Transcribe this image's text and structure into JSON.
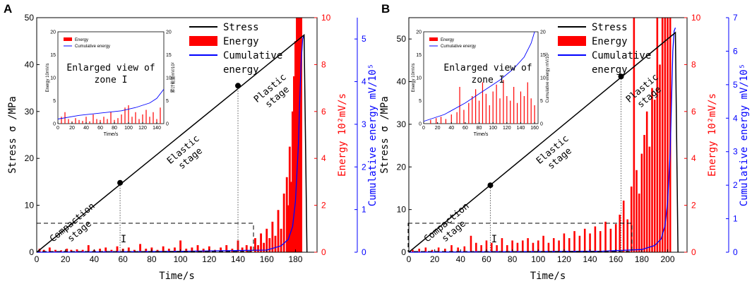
{
  "chart_data": [
    {
      "panel_label": "A",
      "type": "line",
      "xlabel": "Time/s",
      "ylabel": "Stress σ /MPa",
      "y2label": "Energy 10²mV/s",
      "y3label": "Cumulative energy mV/10⁵",
      "xlim": [
        0,
        195
      ],
      "ylim": [
        0,
        50
      ],
      "y2lim": [
        0,
        10
      ],
      "y3lim": [
        0,
        5.5
      ],
      "xticks": [
        0,
        20,
        40,
        60,
        80,
        100,
        120,
        140,
        160,
        180
      ],
      "yticks": [
        0,
        10,
        20,
        30,
        40,
        50
      ],
      "y2ticks": [
        0,
        2,
        4,
        6,
        8,
        10
      ],
      "y3ticks": [
        0,
        1,
        2,
        3,
        4,
        5
      ],
      "stress": {
        "name": "Stress",
        "x": [
          0,
          186,
          188
        ],
        "y": [
          0,
          46.3,
          0
        ]
      },
      "energy_bars": {
        "name": "Energy",
        "x": [
          2,
          5,
          9,
          13,
          17,
          21,
          24,
          28,
          32,
          36,
          40,
          44,
          48,
          52,
          56,
          60,
          64,
          68,
          72,
          76,
          80,
          84,
          88,
          92,
          96,
          100,
          104,
          108,
          112,
          116,
          120,
          124,
          128,
          132,
          136,
          140,
          143,
          146,
          149,
          152,
          154,
          156,
          158,
          160,
          162,
          164,
          166,
          168,
          170,
          172,
          174,
          175,
          176,
          177,
          178,
          179,
          180,
          181,
          182,
          183,
          184
        ],
        "values": [
          0.15,
          0.1,
          0.2,
          0.1,
          0.08,
          0.15,
          0.1,
          0.12,
          0.1,
          0.3,
          0.1,
          0.15,
          0.2,
          0.1,
          0.25,
          0.15,
          0.2,
          0.1,
          0.35,
          0.15,
          0.2,
          0.1,
          0.25,
          0.15,
          0.2,
          0.5,
          0.15,
          0.2,
          0.3,
          0.15,
          0.25,
          0.1,
          0.2,
          0.3,
          0.15,
          0.5,
          0.2,
          0.3,
          0.25,
          0.6,
          0.3,
          0.8,
          0.4,
          1.0,
          0.6,
          1.3,
          0.7,
          1.8,
          1.0,
          2.5,
          3.2,
          2.0,
          4.5,
          3.0,
          6.0,
          7.5,
          9.0,
          10,
          10,
          10,
          10
        ]
      },
      "cumulative": {
        "name": "Cumulative energy",
        "x": [
          0,
          100,
          160,
          170,
          175,
          178,
          180,
          182,
          183,
          184,
          185,
          186
        ],
        "y": [
          0,
          0.02,
          0.05,
          0.15,
          0.3,
          0.6,
          1.2,
          2.5,
          3.6,
          4.5,
          5.0,
          5.1
        ]
      },
      "points": [
        {
          "x": 58,
          "y": 14.8
        },
        {
          "x": 140,
          "y": 35.5
        }
      ],
      "stage_labels": [
        "Compaction stage",
        "Elastic stage",
        "Plastic stage"
      ],
      "zone_label": "I",
      "legend": [
        "Stress",
        "Energy",
        "Cumulative energy"
      ],
      "inset": {
        "title": "Enlarged view of zone I",
        "xlabel": "Time/s",
        "ylabel": "Energy 10mV/s",
        "y2label": "累计能量mV/10²",
        "legend": [
          "Energy",
          "Cumulative energy"
        ],
        "xlim": [
          0,
          150
        ],
        "ylim": [
          0,
          20
        ],
        "y2lim": [
          0,
          20
        ],
        "xticks": [
          0,
          20,
          40,
          60,
          80,
          100,
          120,
          140
        ],
        "yticks": [
          0,
          5,
          10,
          15,
          20
        ],
        "y2ticks": [
          0,
          5,
          10,
          15,
          20
        ],
        "bars_x": [
          5,
          10,
          15,
          20,
          25,
          30,
          35,
          40,
          45,
          50,
          55,
          60,
          65,
          70,
          75,
          80,
          85,
          90,
          95,
          100,
          105,
          110,
          115,
          120,
          125,
          130,
          135,
          140,
          145
        ],
        "bars_y": [
          1.5,
          2.5,
          1.0,
          0.5,
          1.2,
          0.8,
          0.6,
          1.5,
          0.5,
          2.0,
          1.0,
          0.8,
          1.5,
          1.0,
          2.5,
          0.8,
          1.2,
          2.0,
          3.5,
          4.0,
          1.5,
          2.5,
          1.0,
          2.0,
          3.0,
          1.5,
          2.5,
          1.0,
          3.5
        ],
        "cum_x": [
          0,
          30,
          60,
          90,
          110,
          130,
          140,
          150
        ],
        "cum_y": [
          1.0,
          1.8,
          2.3,
          2.8,
          3.5,
          4.5,
          5.5,
          7.5
        ]
      }
    },
    {
      "panel_label": "B",
      "type": "line",
      "xlabel": "Time/s",
      "ylabel": "Stress σ /MPa",
      "y2label": "Energy 10²mV/s",
      "y3label": "Cumulative energy mV/10⁵",
      "xlim": [
        0,
        215
      ],
      "ylim": [
        0,
        55
      ],
      "y2lim": [
        0,
        10
      ],
      "y3lim": [
        0,
        7
      ],
      "xticks": [
        0,
        20,
        40,
        60,
        80,
        100,
        120,
        140,
        160,
        180,
        200
      ],
      "yticks": [
        0,
        10,
        20,
        30,
        40,
        50
      ],
      "y2ticks": [
        0,
        2,
        4,
        6,
        8,
        10
      ],
      "y3ticks": [
        0,
        1,
        2,
        3,
        4,
        5,
        6,
        7
      ],
      "stress": {
        "name": "Stress",
        "x": [
          0,
          206,
          208
        ],
        "y": [
          0,
          51.5,
          0
        ]
      },
      "energy_bars": {
        "name": "Energy",
        "x": [
          3,
          8,
          13,
          18,
          23,
          28,
          33,
          38,
          43,
          48,
          52,
          56,
          60,
          64,
          68,
          72,
          76,
          80,
          84,
          88,
          92,
          96,
          100,
          104,
          108,
          112,
          116,
          120,
          124,
          128,
          132,
          136,
          140,
          144,
          148,
          152,
          156,
          160,
          163,
          166,
          169,
          172,
          174,
          176,
          178,
          180,
          182,
          184,
          186,
          188,
          190,
          192,
          194,
          196,
          198,
          200,
          202
        ],
        "values": [
          0.1,
          0.15,
          0.2,
          0.1,
          0.2,
          0.15,
          0.3,
          0.2,
          0.25,
          0.7,
          0.4,
          0.3,
          0.5,
          0.4,
          0.3,
          0.6,
          0.3,
          0.5,
          0.4,
          0.5,
          0.6,
          0.4,
          0.5,
          0.7,
          0.4,
          0.6,
          0.5,
          0.8,
          0.6,
          0.9,
          0.7,
          1.0,
          0.8,
          1.1,
          0.9,
          1.3,
          1.0,
          1.2,
          1.6,
          2.2,
          1.4,
          2.8,
          10,
          3.5,
          2.5,
          4.2,
          5.0,
          6.0,
          4.5,
          7.0,
          6.5,
          10,
          8.0,
          10,
          10,
          10,
          10
        ]
      },
      "cumulative": {
        "name": "Cumulative energy",
        "x": [
          0,
          150,
          180,
          190,
          195,
          198,
          200,
          202,
          203,
          204,
          205,
          206
        ],
        "y": [
          0,
          0.03,
          0.08,
          0.2,
          0.4,
          0.8,
          1.5,
          3.0,
          4.5,
          6.0,
          6.6,
          6.7
        ]
      },
      "points": [
        {
          "x": 63,
          "y": 15.7
        },
        {
          "x": 164,
          "y": 41.2
        }
      ],
      "stage_labels": [
        "Compaction stage",
        "Elastic stage",
        "Plastic stage"
      ],
      "zone_label": "I",
      "legend": [
        "Stress",
        "Energy",
        "Cumulative energy"
      ],
      "inset": {
        "title": "Enlarged view of zone I",
        "xlabel": "Time/s",
        "ylabel": "Energy 10mV/s",
        "y2label": "Cumulative energy mV/10²",
        "legend": [
          "Energy",
          "Cumulative energy"
        ],
        "xlim": [
          0,
          165
        ],
        "ylim": [
          0,
          20
        ],
        "y2lim": [
          0,
          20
        ],
        "xticks": [
          0,
          20,
          40,
          60,
          80,
          100,
          120,
          140,
          160
        ],
        "yticks": [
          0,
          5,
          10,
          15,
          20
        ],
        "y2ticks": [
          0,
          5,
          10,
          15,
          20
        ],
        "bars_x": [
          10,
          18,
          25,
          32,
          40,
          48,
          52,
          58,
          65,
          70,
          75,
          80,
          85,
          90,
          95,
          100,
          105,
          110,
          115,
          120,
          125,
          130,
          135,
          140,
          145,
          150,
          155,
          160
        ],
        "bars_y": [
          0.8,
          1.2,
          1.5,
          1.0,
          2.0,
          2.5,
          8.0,
          3.0,
          4.5,
          6.0,
          7.5,
          5.0,
          9.0,
          6.5,
          4.0,
          7.0,
          8.5,
          5.5,
          9.5,
          6.0,
          5.0,
          8.0,
          4.5,
          7.0,
          6.0,
          9.0,
          5.5,
          4.0
        ],
        "cum_x": [
          0,
          30,
          60,
          90,
          110,
          130,
          145,
          155,
          160
        ],
        "cum_y": [
          0.5,
          2.0,
          4.5,
          7.5,
          9.5,
          12.0,
          14.5,
          17.5,
          20.0
        ]
      }
    }
  ]
}
